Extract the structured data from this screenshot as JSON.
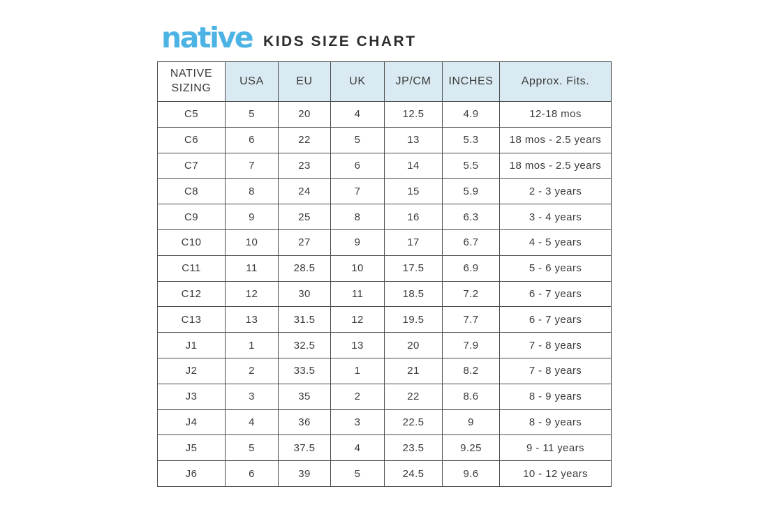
{
  "logo": {
    "text": "native"
  },
  "title": "KIDS SIZE CHART",
  "colors": {
    "brand_blue": "#4db3e4",
    "header_fill": "#d9eaf2",
    "border": "#4a4a4a",
    "text": "#3a3a3a",
    "title_text": "#2d2d2d",
    "background": "#ffffff"
  },
  "table": {
    "columns": [
      "NATIVE SIZING",
      "USA",
      "EU",
      "UK",
      "JP/CM",
      "INCHES",
      "Approx. Fits."
    ],
    "rows": [
      [
        "C5",
        "5",
        "20",
        "4",
        "12.5",
        "4.9",
        "12-18 mos"
      ],
      [
        "C6",
        "6",
        "22",
        "5",
        "13",
        "5.3",
        "18 mos - 2.5 years"
      ],
      [
        "C7",
        "7",
        "23",
        "6",
        "14",
        "5.5",
        "18 mos - 2.5 years"
      ],
      [
        "C8",
        "8",
        "24",
        "7",
        "15",
        "5.9",
        "2 - 3 years"
      ],
      [
        "C9",
        "9",
        "25",
        "8",
        "16",
        "6.3",
        "3 - 4 years"
      ],
      [
        "C10",
        "10",
        "27",
        "9",
        "17",
        "6.7",
        "4 - 5 years"
      ],
      [
        "C11",
        "11",
        "28.5",
        "10",
        "17.5",
        "6.9",
        "5 - 6 years"
      ],
      [
        "C12",
        "12",
        "30",
        "11",
        "18.5",
        "7.2",
        "6 - 7 years"
      ],
      [
        "C13",
        "13",
        "31.5",
        "12",
        "19.5",
        "7.7",
        "6 - 7 years"
      ],
      [
        "J1",
        "1",
        "32.5",
        "13",
        "20",
        "7.9",
        "7 - 8 years"
      ],
      [
        "J2",
        "2",
        "33.5",
        "1",
        "21",
        "8.2",
        "7 - 8 years"
      ],
      [
        "J3",
        "3",
        "35",
        "2",
        "22",
        "8.6",
        "8 - 9 years"
      ],
      [
        "J4",
        "4",
        "36",
        "3",
        "22.5",
        "9",
        "8 - 9 years"
      ],
      [
        "J5",
        "5",
        "37.5",
        "4",
        "23.5",
        "9.25",
        "9 - 11 years"
      ],
      [
        "J6",
        "6",
        "39",
        "5",
        "24.5",
        "9.6",
        "10 - 12 years"
      ]
    ]
  }
}
